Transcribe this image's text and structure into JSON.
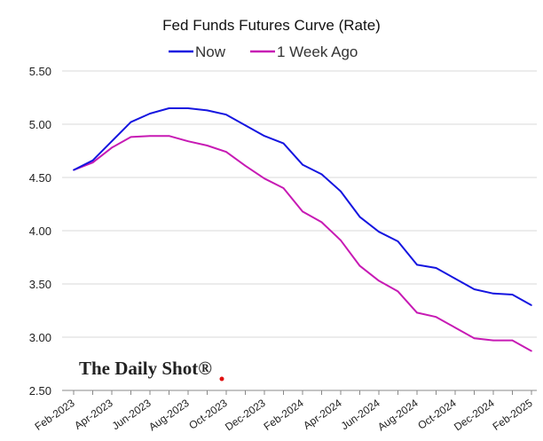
{
  "chart_data": {
    "type": "line",
    "title": "Fed Funds Futures Curve (Rate)",
    "xlabel": "",
    "ylabel": "",
    "ylim": [
      2.5,
      5.5
    ],
    "yticks": [
      "2.50",
      "3.00",
      "3.50",
      "4.00",
      "4.50",
      "5.00",
      "5.50"
    ],
    "grid": true,
    "legend_position": "top-center",
    "x_tick_labels": [
      "Feb-2023",
      "Apr-2023",
      "Jun-2023",
      "Aug-2023",
      "Oct-2023",
      "Dec-2023",
      "Feb-2024",
      "Apr-2024",
      "Jun-2024",
      "Aug-2024",
      "Oct-2024",
      "Dec-2024",
      "Feb-2025"
    ],
    "x": [
      "Feb-2023",
      "Mar-2023",
      "Apr-2023",
      "May-2023",
      "Jun-2023",
      "Jul-2023",
      "Aug-2023",
      "Sep-2023",
      "Oct-2023",
      "Nov-2023",
      "Dec-2023",
      "Jan-2024",
      "Feb-2024",
      "Mar-2024",
      "Apr-2024",
      "May-2024",
      "Jun-2024",
      "Jul-2024",
      "Aug-2024",
      "Sep-2024",
      "Oct-2024",
      "Nov-2024",
      "Dec-2024",
      "Jan-2025",
      "Feb-2025"
    ],
    "series": [
      {
        "name": "Now",
        "color": "#1515e0",
        "values": [
          4.57,
          4.66,
          4.84,
          5.02,
          5.1,
          5.15,
          5.15,
          5.13,
          5.09,
          4.99,
          4.89,
          4.82,
          4.62,
          4.53,
          4.37,
          4.13,
          3.99,
          3.9,
          3.68,
          3.65,
          3.55,
          3.45,
          3.41,
          3.4,
          3.3
        ]
      },
      {
        "name": "1 Week Ago",
        "color": "#c71ab4",
        "values": [
          4.57,
          4.64,
          4.78,
          4.88,
          4.89,
          4.89,
          4.84,
          4.8,
          4.74,
          4.61,
          4.49,
          4.4,
          4.18,
          4.08,
          3.91,
          3.67,
          3.53,
          3.43,
          3.23,
          3.19,
          3.09,
          2.99,
          2.97,
          2.97,
          2.87
        ]
      }
    ]
  },
  "watermark": "The Daily Shot®"
}
